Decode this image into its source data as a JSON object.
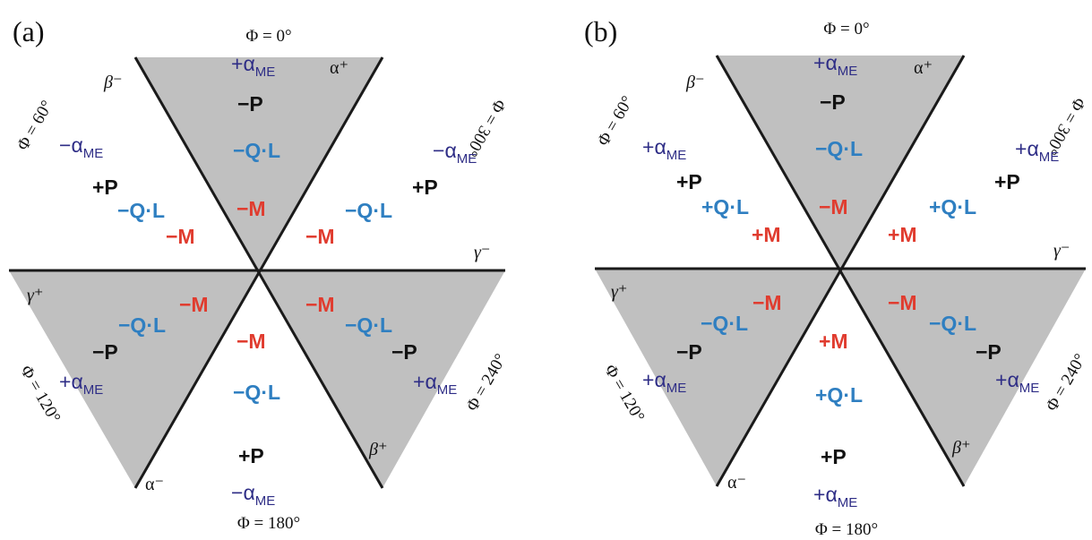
{
  "colors": {
    "shade": "#c0c0c0",
    "line": "#1a1a1a",
    "alpha_me": "#2e2d86",
    "polarization": "#111111",
    "ql": "#2f7fc1",
    "magnetization": "#e03c2f"
  },
  "panels": [
    {
      "label": "(a)",
      "axis_labels": {
        "alpha_plus": "α⁺",
        "alpha_minus": "α⁻",
        "beta_plus": "β⁺",
        "beta_minus": "β⁻",
        "gamma_plus": "γ⁺",
        "gamma_minus": "γ⁻"
      },
      "phi_labels": {
        "phi_0": "Φ = 0°",
        "phi_60": "Φ = 60°",
        "phi_120": "Φ = 120°",
        "phi_180": "Φ = 180°",
        "phi_240": "Φ = 240°",
        "phi_300": "Φ = 300°"
      },
      "sectors": [
        {
          "id": "s0",
          "alpha_sign": "+",
          "alpha_sub": "ME",
          "P": "−P",
          "QL": "−Q·L",
          "M": "−M"
        },
        {
          "id": "s60",
          "alpha_sign": "−",
          "alpha_sub": "ME",
          "P": "+P",
          "QL": "−Q·L",
          "M": "−M"
        },
        {
          "id": "s120",
          "alpha_sign": "+",
          "alpha_sub": "ME",
          "P": "−P",
          "QL": "−Q·L",
          "M": "−M"
        },
        {
          "id": "s180",
          "alpha_sign": "−",
          "alpha_sub": "ME",
          "P": "+P",
          "QL": "−Q·L",
          "M": "−M"
        },
        {
          "id": "s240",
          "alpha_sign": "+",
          "alpha_sub": "ME",
          "P": "−P",
          "QL": "−Q·L",
          "M": "−M"
        },
        {
          "id": "s300",
          "alpha_sign": "−",
          "alpha_sub": "ME",
          "P": "+P",
          "QL": "−Q·L",
          "M": "−M"
        }
      ]
    },
    {
      "label": "(b)",
      "axis_labels": {
        "alpha_plus": "α⁺",
        "alpha_minus": "α⁻",
        "beta_plus": "β⁺",
        "beta_minus": "β⁻",
        "gamma_plus": "γ⁺",
        "gamma_minus": "γ⁻"
      },
      "phi_labels": {
        "phi_0": "Φ = 0°",
        "phi_60": "Φ = 60°",
        "phi_120": "Φ = 120°",
        "phi_180": "Φ = 180°",
        "phi_240": "Φ = 240°",
        "phi_300": "Φ = 300°"
      },
      "sectors": [
        {
          "id": "s0",
          "alpha_sign": "+",
          "alpha_sub": "ME",
          "P": "−P",
          "QL": "−Q·L",
          "M": "−M"
        },
        {
          "id": "s60",
          "alpha_sign": "+",
          "alpha_sub": "ME",
          "P": "+P",
          "QL": "+Q·L",
          "M": "+M"
        },
        {
          "id": "s120",
          "alpha_sign": "+",
          "alpha_sub": "ME",
          "P": "−P",
          "QL": "−Q·L",
          "M": "−M"
        },
        {
          "id": "s180",
          "alpha_sign": "+",
          "alpha_sub": "ME",
          "P": "+P",
          "QL": "+Q·L",
          "M": "+M"
        },
        {
          "id": "s240",
          "alpha_sign": "+",
          "alpha_sub": "ME",
          "P": "−P",
          "QL": "−Q·L",
          "M": "−M"
        },
        {
          "id": "s300",
          "alpha_sign": "+",
          "alpha_sub": "ME",
          "P": "+P",
          "QL": "+Q·L",
          "M": "+M"
        }
      ]
    }
  ]
}
